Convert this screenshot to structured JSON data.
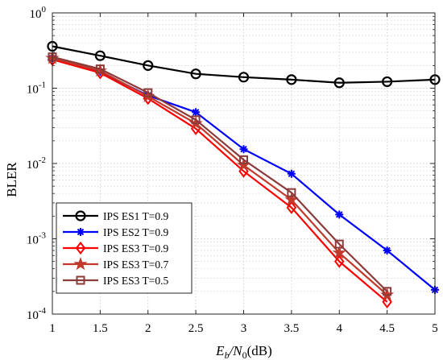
{
  "chart_data": {
    "type": "line",
    "xlabel": "E_b/N_0(dB)",
    "ylabel": "BLER",
    "xlim": [
      1,
      5
    ],
    "ylim": [
      0.0001,
      1
    ],
    "yscale": "log",
    "grid": true,
    "legend_position": "bottom-left",
    "x_ticks": [
      "1",
      "1.5",
      "2",
      "2.5",
      "3",
      "3.5",
      "4",
      "4.5",
      "5"
    ],
    "y_ticks": [
      {
        "base": "10",
        "exp": "0",
        "value": 1
      },
      {
        "base": "10",
        "exp": "-1",
        "value": 0.1
      },
      {
        "base": "10",
        "exp": "-2",
        "value": 0.01
      },
      {
        "base": "10",
        "exp": "-3",
        "value": 0.001
      },
      {
        "base": "10",
        "exp": "-4",
        "value": 0.0001
      }
    ],
    "series": [
      {
        "name": "IPS ES1 T=0.9",
        "color": "#000000",
        "marker": "circle",
        "x": [
          1,
          1.5,
          2,
          2.5,
          3,
          3.5,
          4,
          4.5,
          5
        ],
        "y": [
          0.36,
          0.27,
          0.2,
          0.155,
          0.14,
          0.13,
          0.118,
          0.122,
          0.13
        ]
      },
      {
        "name": "IPS ES2 T=0.9",
        "color": "#0000ff",
        "marker": "asterisk",
        "x": [
          1,
          1.5,
          2,
          2.5,
          3,
          3.5,
          4,
          4.5,
          5
        ],
        "y": [
          0.25,
          0.165,
          0.08,
          0.048,
          0.0155,
          0.0073,
          0.0021,
          0.0007,
          0.00021
        ]
      },
      {
        "name": "IPS ES3 T=0.9",
        "color": "#ff0000",
        "marker": "diamond",
        "x": [
          1,
          1.5,
          2,
          2.5,
          3,
          3.5,
          4,
          4.5
        ],
        "y": [
          0.24,
          0.16,
          0.073,
          0.029,
          0.0079,
          0.0026,
          0.0005,
          0.000145
        ]
      },
      {
        "name": "IPS ES3 T=0.7",
        "color": "#c0392b",
        "marker": "star",
        "x": [
          1,
          1.5,
          2,
          2.5,
          3,
          3.5,
          4,
          4.5
        ],
        "y": [
          0.25,
          0.17,
          0.078,
          0.034,
          0.0095,
          0.0033,
          0.00065,
          0.00018
        ]
      },
      {
        "name": "IPS ES3 T=0.5",
        "color": "#8b3a3a",
        "marker": "square",
        "x": [
          1,
          1.5,
          2,
          2.5,
          3,
          3.5,
          4,
          4.5
        ],
        "y": [
          0.26,
          0.18,
          0.087,
          0.038,
          0.0112,
          0.0041,
          0.00085,
          0.0002
        ]
      }
    ]
  }
}
